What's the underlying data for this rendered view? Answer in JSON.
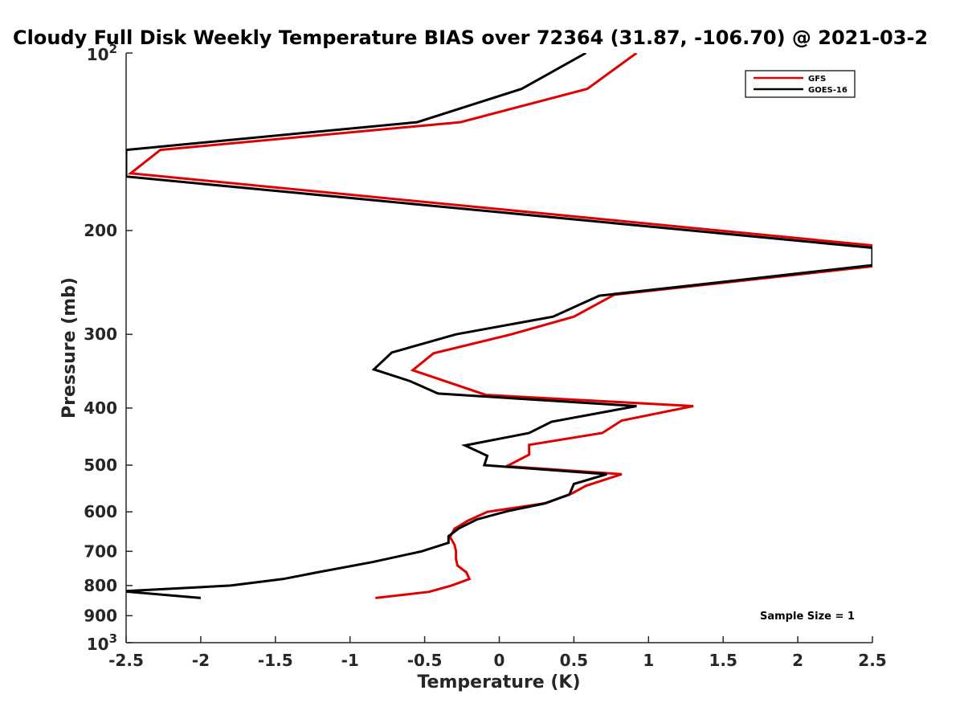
{
  "chart_data": {
    "type": "line",
    "title": "Cloudy Full Disk Weekly Temperature BIAS over 72364 (31.87, -106.70) @ 2021-03-2",
    "xlabel": "Temperature (K)",
    "ylabel": "Pressure (mb)",
    "xlim": [
      -2.5,
      2.5
    ],
    "ylim": [
      100,
      1000
    ],
    "y_scale": "log",
    "y_reversed": true,
    "x_ticks": [
      -2.5,
      -2,
      -1.5,
      -1,
      -0.5,
      0,
      0.5,
      1,
      1.5,
      2,
      2.5
    ],
    "x_tick_labels": [
      "-2.5",
      "-2",
      "-1.5",
      "-1",
      "-0.5",
      "0",
      "0.5",
      "1",
      "1.5",
      "2",
      "2.5"
    ],
    "y_ticks": [
      200,
      300,
      400,
      500,
      600,
      700,
      800,
      900
    ],
    "y_tick_labels": [
      "200",
      "300",
      "400",
      "500",
      "600",
      "700",
      "800",
      "900"
    ],
    "y_decade_ticks": [
      {
        "value": 100,
        "base": "10",
        "exp": "2"
      },
      {
        "value": 1000,
        "base": "10",
        "exp": "3"
      }
    ],
    "legend_placement": "top-right",
    "annotation": "Sample Size = 1",
    "series": [
      {
        "name": "GFS",
        "color": "#e00000",
        "points": [
          [
            0.92,
            100
          ],
          [
            0.59,
            115
          ],
          [
            -0.26,
            131
          ],
          [
            -2.27,
            146
          ],
          [
            -2.47,
            160
          ],
          [
            2.5,
            212
          ],
          [
            2.5,
            230
          ],
          [
            0.77,
            257
          ],
          [
            0.5,
            280
          ],
          [
            0.08,
            300
          ],
          [
            -0.44,
            323
          ],
          [
            -0.58,
            345
          ],
          [
            -0.09,
            380
          ],
          [
            1.3,
            397
          ],
          [
            0.82,
            420
          ],
          [
            0.69,
            441
          ],
          [
            0.2,
            462
          ],
          [
            0.2,
            480
          ],
          [
            0.05,
            502
          ],
          [
            0.82,
            518
          ],
          [
            0.58,
            542
          ],
          [
            0.49,
            558
          ],
          [
            0.31,
            580
          ],
          [
            -0.08,
            600
          ],
          [
            -0.21,
            621
          ],
          [
            -0.3,
            641
          ],
          [
            -0.33,
            662
          ],
          [
            -0.3,
            682
          ],
          [
            -0.29,
            700
          ],
          [
            -0.29,
            721
          ],
          [
            -0.28,
            740
          ],
          [
            -0.22,
            760
          ],
          [
            -0.2,
            780
          ],
          [
            -0.32,
            800
          ],
          [
            -0.47,
            820
          ],
          [
            -0.83,
            840
          ]
        ]
      },
      {
        "name": "GOES-16",
        "color": "#000000",
        "points": [
          [
            0.58,
            100
          ],
          [
            0.15,
            115
          ],
          [
            -0.55,
            131
          ],
          [
            -2.5,
            146
          ],
          [
            -2.5,
            162
          ],
          [
            2.5,
            214
          ],
          [
            2.5,
            229
          ],
          [
            0.67,
            258
          ],
          [
            0.36,
            280
          ],
          [
            -0.29,
            300
          ],
          [
            -0.72,
            322
          ],
          [
            -0.84,
            344
          ],
          [
            -0.6,
            360
          ],
          [
            -0.41,
            378
          ],
          [
            0.92,
            397
          ],
          [
            0.35,
            422
          ],
          [
            0.2,
            441
          ],
          [
            -0.23,
            463
          ],
          [
            -0.08,
            482
          ],
          [
            -0.1,
            500
          ],
          [
            0.72,
            518
          ],
          [
            0.5,
            538
          ],
          [
            0.47,
            561
          ],
          [
            0.3,
            581
          ],
          [
            0.06,
            598
          ],
          [
            -0.15,
            618
          ],
          [
            -0.27,
            640
          ],
          [
            -0.34,
            660
          ],
          [
            -0.34,
            677
          ],
          [
            -0.52,
            700
          ],
          [
            -0.85,
            730
          ],
          [
            -1.22,
            760
          ],
          [
            -1.45,
            780
          ],
          [
            -1.8,
            800
          ],
          [
            -2.52,
            818
          ],
          [
            -2.0,
            840
          ]
        ]
      }
    ]
  }
}
